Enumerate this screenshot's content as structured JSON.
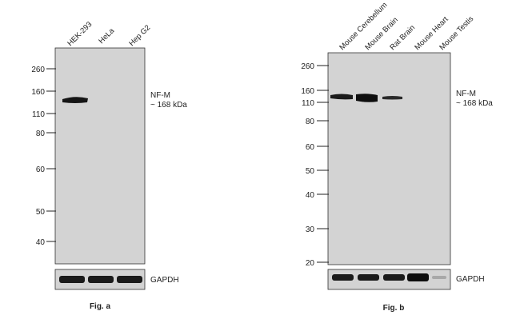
{
  "figures": [
    {
      "id": "a",
      "caption": "Fig. a",
      "lanes": [
        "HEK-293",
        "HeLa",
        "Hep G2"
      ],
      "mw_markers": [
        "260",
        "160",
        "110",
        "80",
        "60",
        "50",
        "40"
      ],
      "target_label": "NF-M",
      "target_size": "~ 168 kDa",
      "loading_control": "GAPDH",
      "target_band_intensity": [
        1.0,
        0.0,
        0.0
      ],
      "control_band_intensity": [
        1.0,
        1.0,
        1.0
      ]
    },
    {
      "id": "b",
      "caption": "Fig. b",
      "lanes": [
        "Mouse Cerebellum",
        "Mouse Brain",
        "Rat Brain",
        "Mouse Heart",
        "Mouse Testis"
      ],
      "mw_markers": [
        "260",
        "160",
        "110",
        "80",
        "60",
        "50",
        "40",
        "30",
        "20"
      ],
      "target_label": "NF-M",
      "target_size": "~ 168 kDa",
      "loading_control": "GAPDH",
      "target_band_intensity": [
        0.9,
        1.0,
        0.6,
        0.0,
        0.0
      ],
      "control_band_intensity": [
        1.0,
        1.0,
        1.0,
        1.0,
        0.2
      ]
    }
  ],
  "colors": {
    "membrane": "#d3d3d3",
    "band": "#111111",
    "border": "#333333"
  }
}
